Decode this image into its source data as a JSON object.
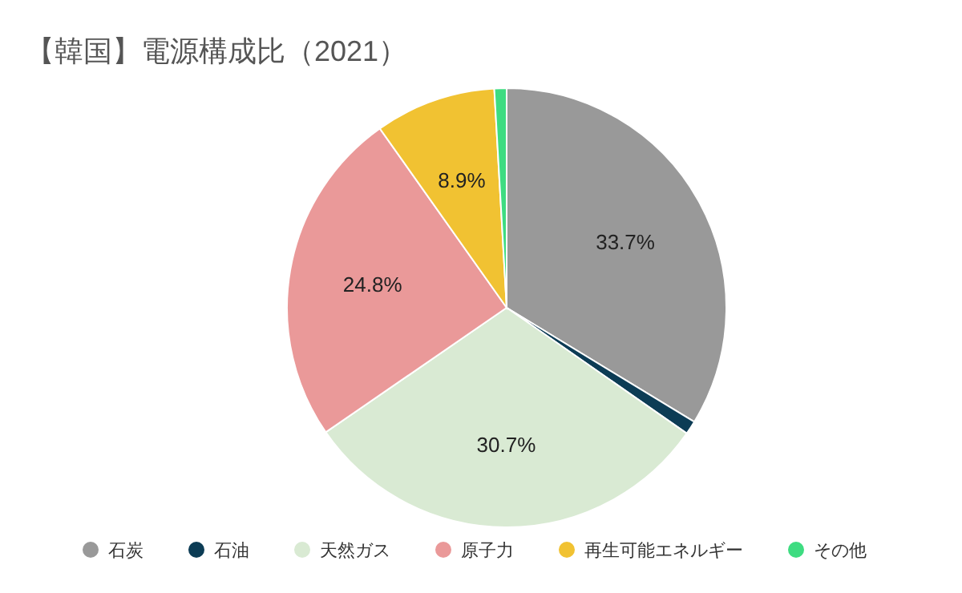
{
  "chart_data": {
    "type": "pie",
    "title": "【韓国】電源構成比（2021）",
    "categories": [
      "石炭",
      "石油",
      "天然ガス",
      "原子力",
      "再生可能エネルギー",
      "その他"
    ],
    "values": [
      33.7,
      1.0,
      30.7,
      24.8,
      8.9,
      0.9
    ],
    "colors": [
      "#999999",
      "#0c3c55",
      "#d9ead3",
      "#ea9999",
      "#f1c232",
      "#3edc81"
    ],
    "value_labels": [
      "33.7%",
      null,
      "30.7%",
      "24.8%",
      "8.9%",
      null
    ],
    "legend": "bottom"
  }
}
